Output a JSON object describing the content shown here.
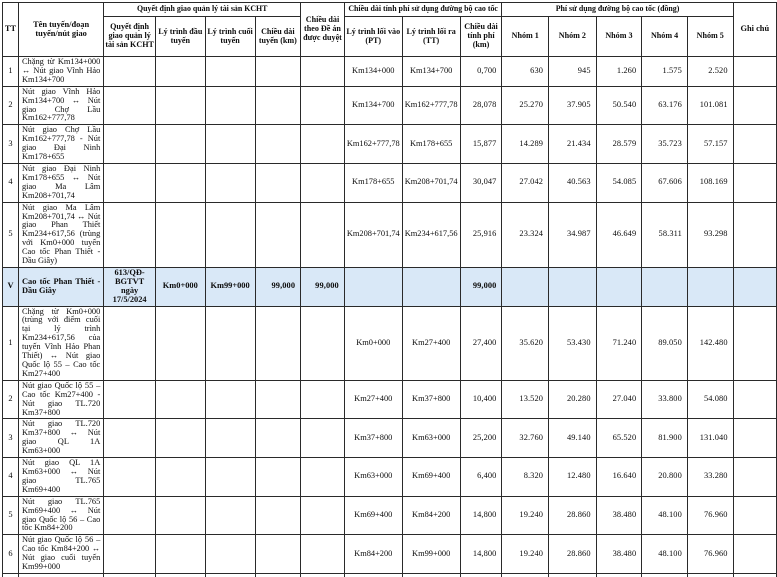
{
  "document": {
    "type": "toll-fee-table",
    "highlight_color": "#d9e8f7",
    "border_color": "#2a2a2a"
  },
  "header": {
    "tt": "TT",
    "route": "Tên tuyến/đoạn tuyến/nút giao",
    "decision_group": "Quyết định giao quản lý tài sản KCHT",
    "decision_sub": [
      "Quyết định giao quản lý tài sản KCHT",
      "Lý trình đầu tuyến",
      "Lý trình cuối tuyến",
      "Chiều dài tuyến (km)"
    ],
    "approved_length": "Chiều dài theo Đề án được duyệt",
    "charged_group": "Chiều dài tính phí sử dụng đường bộ cao tốc",
    "charged_sub": [
      "Lý trình lối vào (PT)",
      "Lý trình lối ra (TT)",
      "Chiều dài tính phí (km)"
    ],
    "fee_group": "Phí sử dụng đường bộ cao tốc (đồng)",
    "fee_sub": [
      "Nhóm 1",
      "Nhóm 2",
      "Nhóm 3",
      "Nhóm 4",
      "Nhóm 5"
    ],
    "note": "Ghi chú"
  },
  "rows": [
    {
      "tt": "1",
      "name": "Chặng từ Km134+000 ↔ Nút giao Vĩnh Hảo Km134+700",
      "qd": "",
      "dau": "",
      "cuoi": "",
      "cd_tuyen": "",
      "de_an": "",
      "vao": "Km134+000",
      "ra": "Km134+700",
      "tinh_phi": "0,700",
      "n1": "630",
      "n2": "945",
      "n3": "1.260",
      "n4": "1.575",
      "n5": "2.520",
      "ghi_chu": ""
    },
    {
      "tt": "2",
      "name": "Nút giao Vĩnh Hảo Km134+700 ↔ Nút giao Chợ Lầu Km162+777,78",
      "qd": "",
      "dau": "",
      "cuoi": "",
      "cd_tuyen": "",
      "de_an": "",
      "vao": "Km134+700",
      "ra": "Km162+777,78",
      "tinh_phi": "28,078",
      "n1": "25.270",
      "n2": "37.905",
      "n3": "50.540",
      "n4": "63.176",
      "n5": "101.081",
      "ghi_chu": ""
    },
    {
      "tt": "3",
      "name": "Nút giao Chợ Lầu Km162+777,78 - Nút giao Đại Ninh Km178+655",
      "qd": "",
      "dau": "",
      "cuoi": "",
      "cd_tuyen": "",
      "de_an": "",
      "vao": "Km162+777,78",
      "ra": "Km178+655",
      "tinh_phi": "15,877",
      "n1": "14.289",
      "n2": "21.434",
      "n3": "28.579",
      "n4": "35.723",
      "n5": "57.157",
      "ghi_chu": ""
    },
    {
      "tt": "4",
      "name": "Nút giao Đại Ninh Km178+655 ↔ Nút giao Ma Lâm Km208+701,74",
      "qd": "",
      "dau": "",
      "cuoi": "",
      "cd_tuyen": "",
      "de_an": "",
      "vao": "Km178+655",
      "ra": "Km208+701,74",
      "tinh_phi": "30,047",
      "n1": "27.042",
      "n2": "40.563",
      "n3": "54.085",
      "n4": "67.606",
      "n5": "108.169",
      "ghi_chu": ""
    },
    {
      "tt": "5",
      "name": "Nút giao Ma Lâm Km208+701,74 ↔ Nút giao Phan Thiết Km234+617,56 (trùng với Km0+000 tuyến Cao tốc Phan Thiết - Dầu Giây)",
      "qd": "",
      "dau": "",
      "cuoi": "",
      "cd_tuyen": "",
      "de_an": "",
      "vao": "Km208+701,74",
      "ra": "Km234+617,56",
      "tinh_phi": "25,916",
      "n1": "23.324",
      "n2": "34.987",
      "n3": "46.649",
      "n4": "58.311",
      "n5": "93.298",
      "ghi_chu": ""
    },
    {
      "tt": "V",
      "hl": true,
      "name": "Cao tốc Phan Thiết - Dầu Giây",
      "qd": "613/QĐ-BGTVT ngày 17/5/2024",
      "dau": "Km0+000",
      "cuoi": "Km99+000",
      "cd_tuyen": "99,000",
      "de_an": "99,000",
      "vao": "",
      "ra": "",
      "tinh_phi": "99,000",
      "n1": "",
      "n2": "",
      "n3": "",
      "n4": "",
      "n5": "",
      "ghi_chu": ""
    },
    {
      "tt": "1",
      "name": "Chặng từ Km0+000 (trùng với điểm cuối tại lý trình Km234+617,56 của tuyến Vĩnh Hảo Phan Thiết) ↔ Nút giao Quốc lộ 55 – Cao tốc Km27+400",
      "qd": "",
      "dau": "",
      "cuoi": "",
      "cd_tuyen": "",
      "de_an": "",
      "vao": "Km0+000",
      "ra": "Km27+400",
      "tinh_phi": "27,400",
      "n1": "35.620",
      "n2": "53.430",
      "n3": "71.240",
      "n4": "89.050",
      "n5": "142.480",
      "ghi_chu": ""
    },
    {
      "tt": "2",
      "name": "Nút giao Quốc lộ 55 – Cao tốc Km27+400 - Nút giao TL.720 Km37+800",
      "qd": "",
      "dau": "",
      "cuoi": "",
      "cd_tuyen": "",
      "de_an": "",
      "vao": "Km27+400",
      "ra": "Km37+800",
      "tinh_phi": "10,400",
      "n1": "13.520",
      "n2": "20.280",
      "n3": "27.040",
      "n4": "33.800",
      "n5": "54.080",
      "ghi_chu": ""
    },
    {
      "tt": "3",
      "name": "Nút giao TL.720 Km37+800 ↔ Nút giao QL 1A Km63+000",
      "qd": "",
      "dau": "",
      "cuoi": "",
      "cd_tuyen": "",
      "de_an": "",
      "vao": "Km37+800",
      "ra": "Km63+000",
      "tinh_phi": "25,200",
      "n1": "32.760",
      "n2": "49.140",
      "n3": "65.520",
      "n4": "81.900",
      "n5": "131.040",
      "ghi_chu": ""
    },
    {
      "tt": "4",
      "name": "Nút giao QL 1A Km63+000 ↔ Nút giao TL.765 Km69+400",
      "qd": "",
      "dau": "",
      "cuoi": "",
      "cd_tuyen": "",
      "de_an": "",
      "vao": "Km63+000",
      "ra": "Km69+400",
      "tinh_phi": "6,400",
      "n1": "8.320",
      "n2": "12.480",
      "n3": "16.640",
      "n4": "20.800",
      "n5": "33.280",
      "ghi_chu": ""
    },
    {
      "tt": "5",
      "name": "Nút giao TL.765 Km69+400 ↔ Nút giao Quốc lộ 56 – Cao tốc Km84+200",
      "qd": "",
      "dau": "",
      "cuoi": "",
      "cd_tuyen": "",
      "de_an": "",
      "vao": "Km69+400",
      "ra": "Km84+200",
      "tinh_phi": "14,800",
      "n1": "19.240",
      "n2": "28.860",
      "n3": "38.480",
      "n4": "48.100",
      "n5": "76.960",
      "ghi_chu": ""
    },
    {
      "tt": "6",
      "name": "Nút giao Quốc lộ 56 – Cao tốc Km84+200 ↔ Nút giao cuối tuyến Km99+000",
      "qd": "",
      "dau": "",
      "cuoi": "",
      "cd_tuyen": "",
      "de_an": "",
      "vao": "Km84+200",
      "ra": "Km99+000",
      "tinh_phi": "14,800",
      "n1": "19.240",
      "n2": "28.860",
      "n3": "38.480",
      "n4": "48.100",
      "n5": "76.960",
      "ghi_chu": ""
    }
  ]
}
